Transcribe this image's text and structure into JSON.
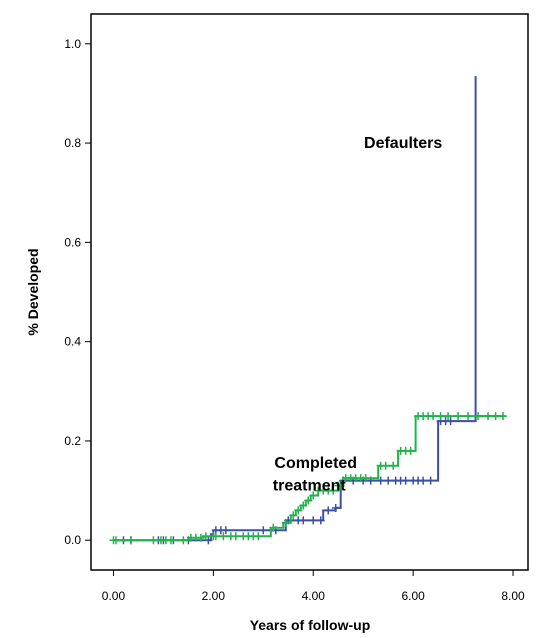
{
  "chart_data": {
    "type": "line",
    "title": "",
    "xlabel": "Years of follow-up",
    "ylabel": "% Developed",
    "xlim": [
      -0.45,
      8.3
    ],
    "ylim": [
      -0.06,
      1.06
    ],
    "x_ticks": [
      "0.00",
      "2.00",
      "4.00",
      "6.00",
      "8.00"
    ],
    "y_ticks": [
      "0.0",
      "0.2",
      "0.4",
      "0.6",
      "0.8",
      "1.0"
    ],
    "grid": false,
    "legend": "none",
    "annotations": [
      {
        "text": "Defaulters",
        "x": 5.8,
        "y": 0.79,
        "target": "blue"
      },
      {
        "text": "Completed",
        "x": 4.05,
        "y": 0.145,
        "target": "green"
      },
      {
        "text": "treatment",
        "x": 3.92,
        "y": 0.1,
        "target": "green"
      }
    ],
    "series": [
      {
        "color": "#3c4fa6",
        "steps": [
          [
            0.0,
            0.0
          ],
          [
            1.95,
            0.0
          ],
          [
            1.95,
            0.012
          ],
          [
            1.95,
            0.012
          ],
          [
            2.0,
            0.012
          ],
          [
            2.0,
            0.02
          ],
          [
            3.45,
            0.02
          ],
          [
            3.45,
            0.04
          ],
          [
            4.2,
            0.04
          ],
          [
            4.2,
            0.06
          ],
          [
            4.45,
            0.06
          ],
          [
            4.45,
            0.065
          ],
          [
            4.55,
            0.065
          ],
          [
            4.55,
            0.12
          ],
          [
            6.5,
            0.12
          ],
          [
            6.5,
            0.24
          ],
          [
            7.25,
            0.24
          ],
          [
            7.25,
            0.935
          ],
          [
            7.25,
            0.25
          ],
          [
            7.75,
            0.25
          ]
        ],
        "censor_x": [
          0.2,
          0.35,
          0.9,
          1.0,
          1.2,
          1.5,
          1.9,
          2.05,
          2.15,
          2.25,
          3.0,
          3.25,
          3.5,
          3.7,
          3.8,
          4.0,
          4.15,
          4.3,
          4.45,
          4.6,
          4.8,
          5.0,
          5.15,
          5.35,
          5.5,
          5.65,
          5.75,
          5.85,
          6.0,
          6.1,
          6.2,
          6.35,
          6.55,
          6.65,
          6.75
        ]
      },
      {
        "color": "#22b24c",
        "steps": [
          [
            0.0,
            0.0
          ],
          [
            1.5,
            0.0
          ],
          [
            1.5,
            0.005
          ],
          [
            1.8,
            0.005
          ],
          [
            1.8,
            0.008
          ],
          [
            3.15,
            0.008
          ],
          [
            3.15,
            0.025
          ],
          [
            3.4,
            0.025
          ],
          [
            3.4,
            0.035
          ],
          [
            3.55,
            0.035
          ],
          [
            3.55,
            0.05
          ],
          [
            3.65,
            0.05
          ],
          [
            3.65,
            0.06
          ],
          [
            3.75,
            0.06
          ],
          [
            3.75,
            0.07
          ],
          [
            3.85,
            0.07
          ],
          [
            3.85,
            0.08
          ],
          [
            3.95,
            0.08
          ],
          [
            3.95,
            0.09
          ],
          [
            4.1,
            0.09
          ],
          [
            4.1,
            0.1
          ],
          [
            4.5,
            0.1
          ],
          [
            4.5,
            0.11
          ],
          [
            4.6,
            0.11
          ],
          [
            4.6,
            0.125
          ],
          [
            5.3,
            0.125
          ],
          [
            5.3,
            0.15
          ],
          [
            5.7,
            0.15
          ],
          [
            5.7,
            0.18
          ],
          [
            6.05,
            0.18
          ],
          [
            6.05,
            0.25
          ],
          [
            7.85,
            0.25
          ]
        ],
        "censor_x": [
          0.0,
          0.05,
          0.35,
          0.8,
          0.95,
          1.05,
          1.15,
          1.4,
          1.55,
          1.65,
          1.75,
          1.85,
          2.0,
          2.05,
          2.2,
          2.35,
          2.45,
          2.6,
          2.7,
          2.8,
          2.9,
          3.2,
          3.45,
          3.6,
          3.7,
          3.8,
          3.9,
          4.0,
          4.1,
          4.2,
          4.3,
          4.4,
          4.5,
          4.55,
          4.65,
          4.75,
          4.85,
          4.95,
          5.05,
          5.35,
          5.45,
          5.6,
          5.75,
          5.85,
          5.95,
          6.1,
          6.2,
          6.3,
          6.4,
          6.55,
          6.7,
          6.9,
          7.1,
          7.3,
          7.5,
          7.65,
          7.8
        ]
      }
    ]
  }
}
